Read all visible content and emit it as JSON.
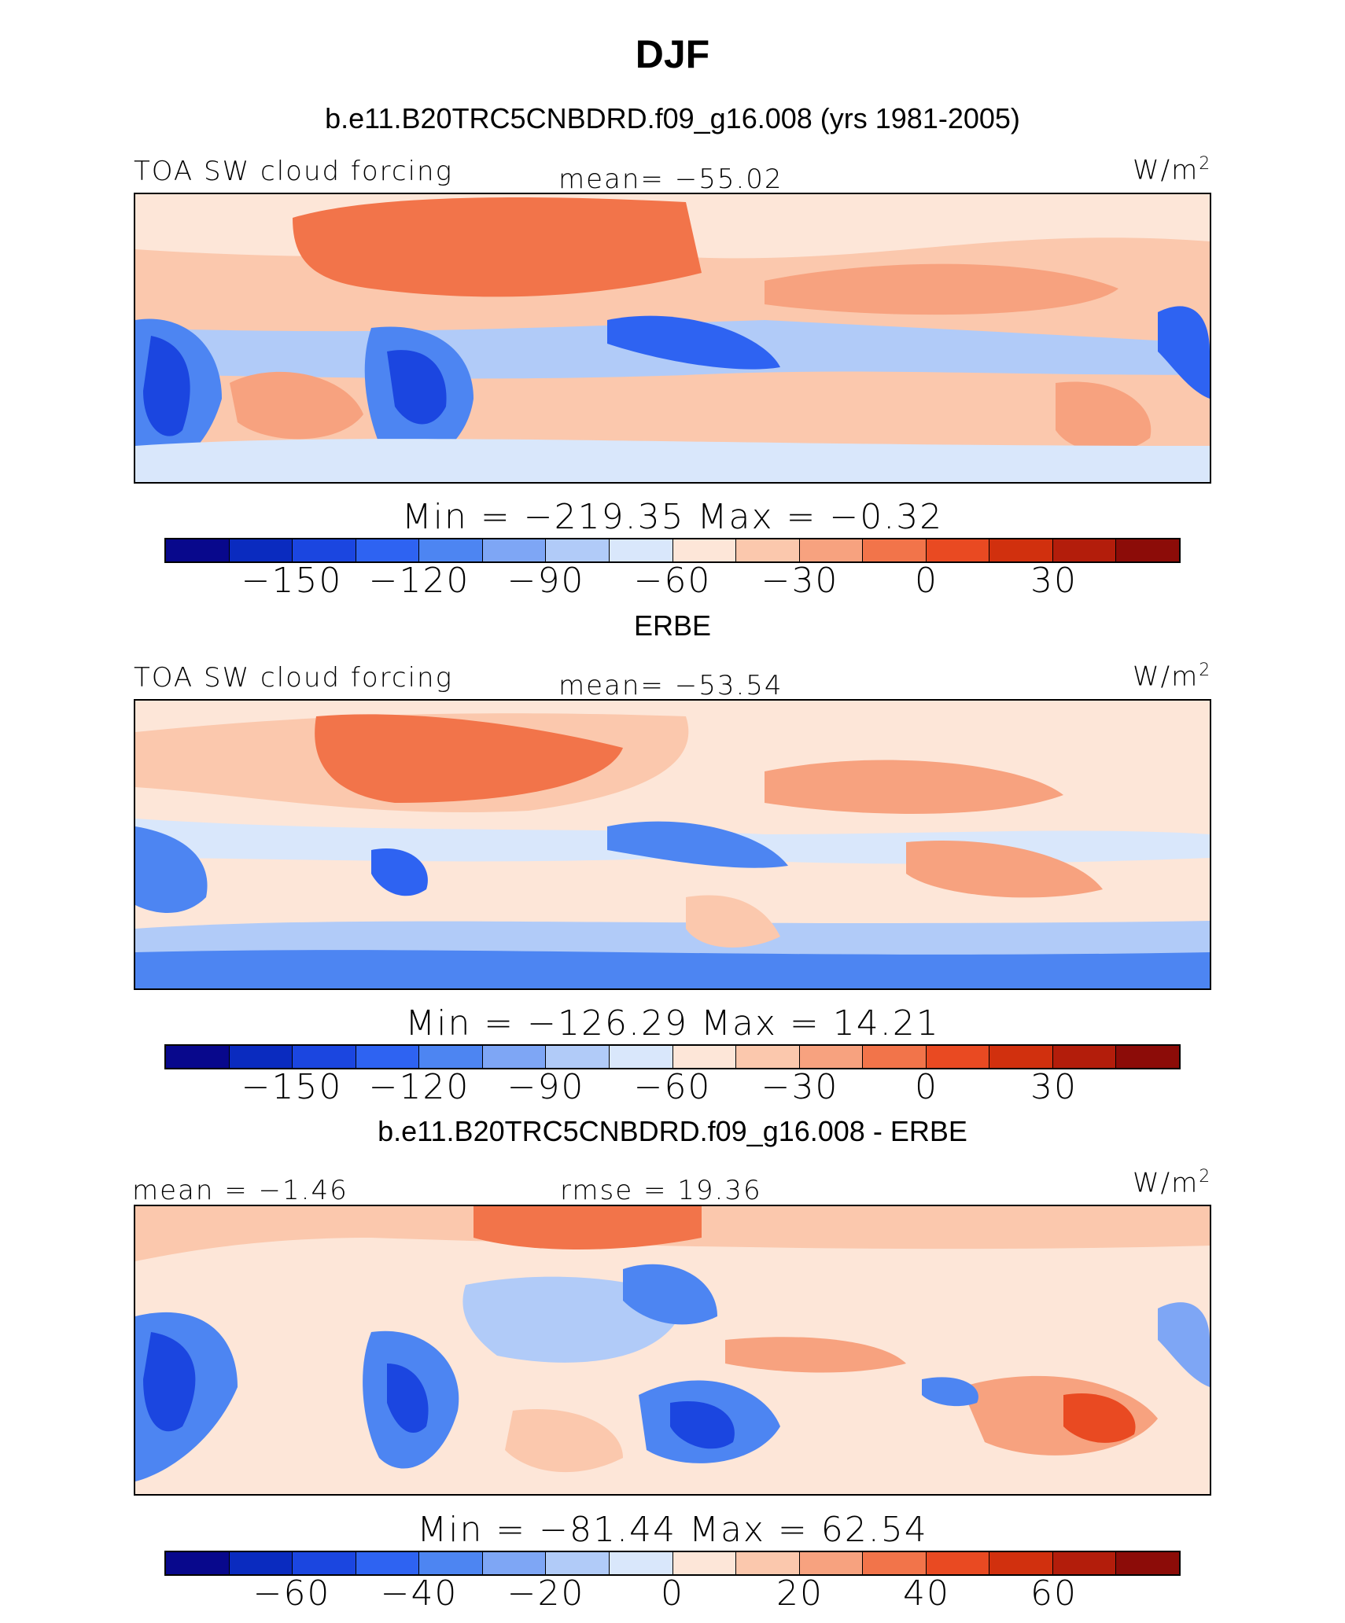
{
  "title": "DJF",
  "panels": [
    {
      "heading": "b.e11.B20TRC5CNBDRD.f09_g16.008 (yrs 1981-2005)",
      "left_label": "TOA SW cloud forcing",
      "center_label": "mean=  −55.02",
      "units": "W/m",
      "units_sup": "2",
      "minmax": "Min  =  −219.35  Max  =   −0.32",
      "colorbar_ticks": [
        "−150",
        "−120",
        "−90",
        "−60",
        "−30",
        "0",
        "30"
      ]
    },
    {
      "heading": "ERBE",
      "left_label": "TOA SW cloud forcing",
      "center_label": "mean=  −53.54",
      "units": "W/m",
      "units_sup": "2",
      "minmax": "Min  =  −126.29  Max  =   14.21",
      "colorbar_ticks": [
        "−150",
        "−120",
        "−90",
        "−60",
        "−30",
        "0",
        "30"
      ]
    },
    {
      "heading": "b.e11.B20TRC5CNBDRD.f09_g16.008 - ERBE",
      "left_label": "mean  =   −1.46",
      "center_label": "rmse  =   19.36",
      "units": "W/m",
      "units_sup": "2",
      "minmax": "Min  =  −81.44  Max  =   62.54",
      "colorbar_ticks": [
        "−60",
        "−40",
        "−20",
        "0",
        "20",
        "40",
        "60"
      ]
    }
  ],
  "colorbar_colors": [
    "#08088c",
    "#0a2bbf",
    "#1b46e0",
    "#2e63f2",
    "#4d85f2",
    "#7ea6f5",
    "#b1cbf8",
    "#d9e7fb",
    "#fde6d8",
    "#fbc8ad",
    "#f7a27f",
    "#f2744a",
    "#e94a22",
    "#d1300e",
    "#b31d0b",
    "#8c0c08"
  ]
}
